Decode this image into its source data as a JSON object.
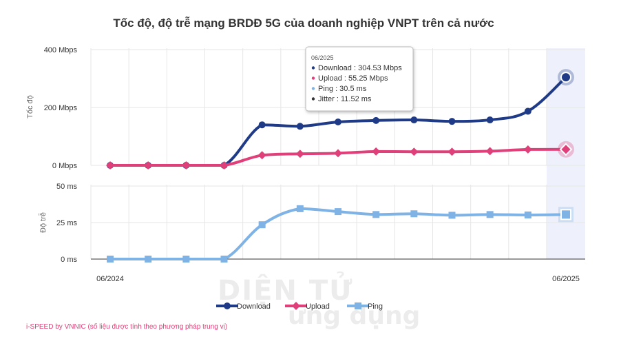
{
  "title": "Tốc độ, độ trễ mạng BRDĐ 5G của doanh nghiệp VNPT trên cả nước",
  "footnote": "i-SPEED by VNNIC (số liệu được tính theo phương pháp trung vị)",
  "watermark": {
    "line1": "DIỆN TỬ",
    "line2": "ứng dụng"
  },
  "chart_data": [
    {
      "type": "line",
      "name": "speed",
      "ylabel": "Tốc độ",
      "yticks": [
        "0 Mbps",
        "200 Mbps",
        "400 Mbps"
      ],
      "ylim": [
        0,
        400
      ],
      "x_labels": {
        "first": "06/2024",
        "last": "06/2025"
      },
      "x_count": 13,
      "series": [
        {
          "name": "Download",
          "color": "#1f3b87",
          "marker": "circle",
          "values": [
            0,
            0,
            0,
            0,
            140,
            135,
            150,
            155,
            157,
            152,
            157,
            187,
            304.53
          ]
        },
        {
          "name": "Upload",
          "color": "#e0407a",
          "marker": "diamond",
          "values": [
            0,
            0,
            0,
            0,
            35,
            40,
            42,
            48,
            47,
            47,
            49,
            55,
            55.25
          ]
        }
      ]
    },
    {
      "type": "line",
      "name": "latency",
      "ylabel": "Độ trễ",
      "yticks": [
        "0 ms",
        "25 ms",
        "50 ms"
      ],
      "ylim": [
        0,
        50
      ],
      "series": [
        {
          "name": "Ping",
          "color": "#7fb2e5",
          "marker": "square",
          "values": [
            0,
            0,
            0,
            0,
            23.5,
            34.5,
            32.5,
            30.5,
            31,
            30,
            30.5,
            30.2,
            30.5
          ]
        }
      ]
    }
  ],
  "legend": [
    {
      "label": "Download",
      "color": "#1f3b87",
      "marker": "circle"
    },
    {
      "label": "Upload",
      "color": "#e0407a",
      "marker": "diamond"
    },
    {
      "label": "Ping",
      "color": "#7fb2e5",
      "marker": "square"
    }
  ],
  "tooltip": {
    "header": "06/2025",
    "rows": [
      {
        "text": "Download : 304.53 Mbps",
        "color": "#1f3b87"
      },
      {
        "text": "Upload : 55.25 Mbps",
        "color": "#e0407a"
      },
      {
        "text": "Ping : 30.5 ms",
        "color": "#7fb2e5"
      },
      {
        "text": "Jitter : 11.52 ms",
        "color": "#333333"
      }
    ]
  },
  "highlight_index": 12,
  "colors": {
    "grid": "#e6e6e6",
    "highlight_band": "#eef1fb"
  }
}
